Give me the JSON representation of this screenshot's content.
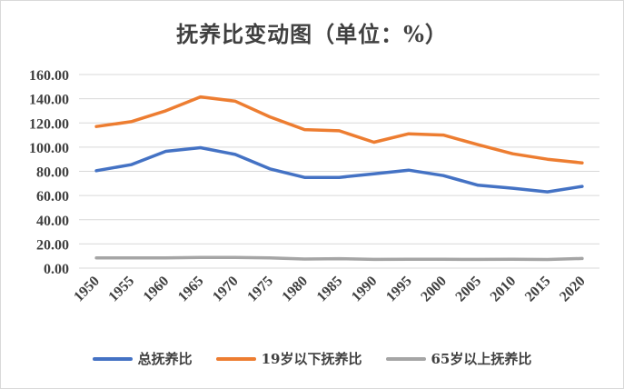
{
  "chart_data": {
    "type": "line",
    "title": "抚养比变动图（单位：%）",
    "categories": [
      "1950",
      "1955",
      "1960",
      "1965",
      "1970",
      "1975",
      "1980",
      "1985",
      "1990",
      "1995",
      "2000",
      "2005",
      "2010",
      "2015",
      "2020"
    ],
    "ylim": [
      0,
      160
    ],
    "yticks": [
      "0.00",
      "20.00",
      "40.00",
      "60.00",
      "80.00",
      "100.00",
      "120.00",
      "140.00",
      "160.00"
    ],
    "grid": true,
    "legend_position": "bottom",
    "series": [
      {
        "name": "总抚养比",
        "color": "#4472c4",
        "values": [
          80.5,
          85.5,
          96.5,
          99.5,
          94.0,
          82.0,
          75.0,
          75.0,
          78.0,
          81.0,
          76.5,
          68.5,
          66.0,
          63.0,
          67.5
        ]
      },
      {
        "name": "19岁以下抚养比",
        "color": "#ed7d31",
        "values": [
          117.0,
          121.0,
          130.0,
          141.5,
          138.0,
          125.0,
          114.5,
          113.5,
          104.0,
          111.0,
          110.0,
          102.0,
          94.5,
          90.0,
          87.0
        ]
      },
      {
        "name": "65岁以上抚养比",
        "color": "#a5a5a5",
        "values": [
          8.5,
          8.5,
          8.5,
          8.8,
          8.8,
          8.5,
          7.5,
          7.8,
          7.2,
          7.3,
          7.3,
          7.2,
          7.3,
          7.1,
          8.0
        ]
      }
    ]
  }
}
